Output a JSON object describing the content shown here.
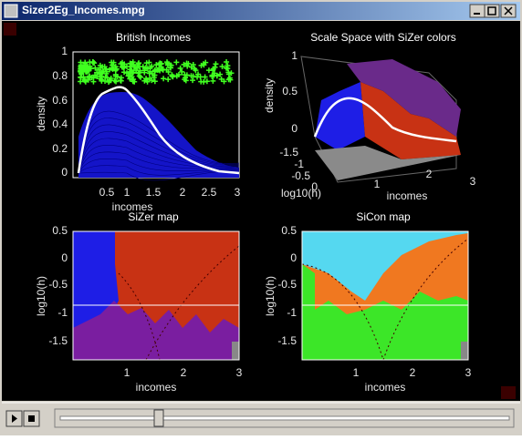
{
  "window": {
    "title": "Sizer2Eg_Incomes.mpg"
  },
  "panels": [
    {
      "title": "British Incomes",
      "x_label": "incomes",
      "y_label": "density",
      "x_ticks": [
        0.5,
        1,
        1.5,
        2,
        2.5,
        3
      ],
      "y_ticks": [
        0,
        0.2,
        0.4,
        0.6,
        0.8,
        1
      ]
    },
    {
      "title": "Scale Space with SiZer colors",
      "x_label": "incomes",
      "y_label": "log10(h)",
      "z_label": "density",
      "x_ticks": [
        1,
        2,
        3
      ],
      "y_ticks": [
        -1.5,
        -1,
        -0.5,
        0
      ],
      "z_ticks": [
        0,
        0.5,
        1
      ]
    },
    {
      "title": "SiZer map",
      "x_label": "incomes",
      "y_label": "log10(h)",
      "x_ticks": [
        1,
        2,
        3
      ],
      "y_ticks": [
        -1.5,
        -1,
        -0.5,
        0,
        0.5
      ]
    },
    {
      "title": "SiCon map",
      "x_label": "incomes",
      "y_label": "log10(h)",
      "x_ticks": [
        1,
        2,
        3
      ],
      "y_ticks": [
        -1.5,
        -1,
        -0.5,
        0,
        0.5
      ]
    }
  ]
}
